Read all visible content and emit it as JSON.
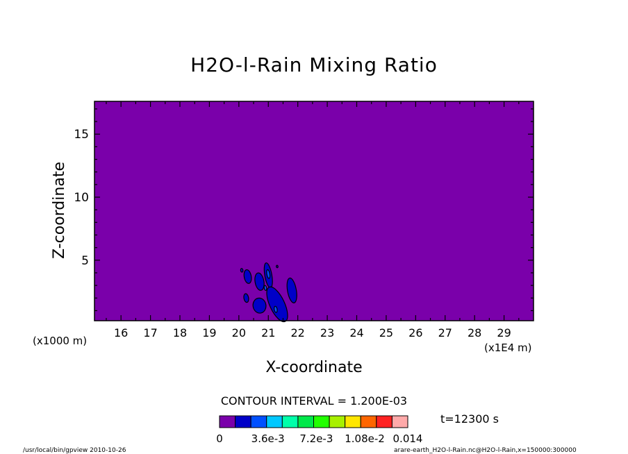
{
  "chart_data": {
    "type": "contour",
    "title": "H2O-l-Rain Mixing Ratio",
    "xlabel": "X-coordinate",
    "ylabel": "Z-coordinate",
    "x_ticks": [
      "16",
      "17",
      "18",
      "19",
      "20",
      "21",
      "22",
      "23",
      "24",
      "25",
      "26",
      "27",
      "28",
      "29"
    ],
    "y_ticks": [
      "5",
      "10",
      "15"
    ],
    "x_unit_left": "(x1000 m)",
    "x_unit_right": "(x1E4 m)",
    "xlim": [
      15.1,
      30.0
    ],
    "ylim": [
      0.2,
      17.6
    ],
    "contour_interval_label": "CONTOUR INTERVAL = 1.200E-03",
    "time_label": "t=12300 s",
    "colorbar": {
      "colors": [
        "#7a00aa",
        "#0000c8",
        "#0050ff",
        "#00c8ff",
        "#00ffaa",
        "#00e84a",
        "#22ff00",
        "#a8f000",
        "#ffe600",
        "#ff6600",
        "#ff2222",
        "#ffaaaa"
      ],
      "tick_labels": [
        "0",
        "3.6e-3",
        "7.2e-3",
        "1.08e-2",
        "0.014"
      ],
      "tick_values": [
        0,
        0.0036,
        0.0072,
        0.0108,
        0.014
      ]
    },
    "regions": [
      {
        "level": 1,
        "center": [
          20.1,
          4.2
        ],
        "rx": 0.04,
        "ry": 0.15
      },
      {
        "level": 1,
        "center": [
          20.3,
          3.7
        ],
        "rx": 0.12,
        "ry": 0.55
      },
      {
        "level": 1,
        "center": [
          20.7,
          3.3
        ],
        "rx": 0.15,
        "ry": 0.7
      },
      {
        "level": 1,
        "center": [
          21.0,
          3.8
        ],
        "rx": 0.12,
        "ry": 1.0
      },
      {
        "level": 1,
        "center": [
          21.3,
          1.5
        ],
        "rx": 0.25,
        "ry": 1.5
      },
      {
        "level": 1,
        "center": [
          20.7,
          1.4
        ],
        "rx": 0.22,
        "ry": 0.6
      },
      {
        "level": 1,
        "center": [
          20.25,
          2.0
        ],
        "rx": 0.08,
        "ry": 0.35
      },
      {
        "level": 1,
        "center": [
          21.8,
          2.6
        ],
        "rx": 0.15,
        "ry": 1.0
      },
      {
        "level": 1,
        "center": [
          21.3,
          4.5
        ],
        "rx": 0.03,
        "ry": 0.1
      },
      {
        "level": 2,
        "center": [
          21.0,
          3.9
        ],
        "rx": 0.05,
        "ry": 0.35
      },
      {
        "level": 2,
        "center": [
          21.25,
          1.1
        ],
        "rx": 0.05,
        "ry": 0.25
      },
      {
        "level": 2,
        "center": [
          20.9,
          2.8
        ],
        "rx": 0.04,
        "ry": 0.2
      }
    ]
  },
  "footer": {
    "left": "/usr/local/bin/gpview  2010-10-26",
    "right": "arare-earth_H2O-l-Rain.nc@H2O-l-Rain,x=150000:300000"
  }
}
